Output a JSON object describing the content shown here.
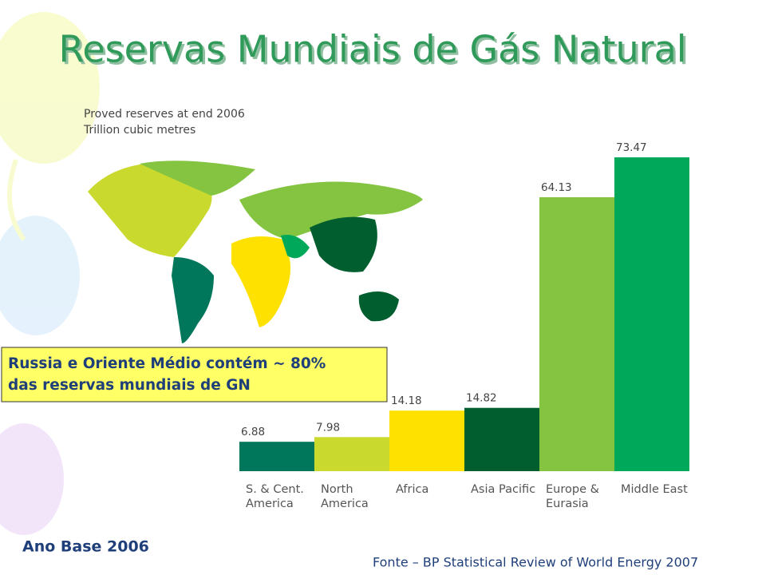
{
  "chart_data": {
    "type": "bar",
    "title": "Reservas Mundiais de Gás Natural",
    "subtitle": [
      "Proved reserves at end 2006",
      "Trillion cubic metres"
    ],
    "categories": [
      "S. & Cent. America",
      "North America",
      "Africa",
      "Asia Pacific",
      "Europe & Eurasia",
      "Middle East"
    ],
    "values": [
      6.88,
      7.98,
      14.18,
      14.82,
      64.13,
      73.47
    ],
    "colors": [
      "#00765a",
      "#c9d92e",
      "#ffe100",
      "#005e2f",
      "#84c441",
      "#00a95a"
    ],
    "annotation": [
      "Russia e Oriente Médio contém ~ 80%",
      "das reservas mundiais de GN"
    ],
    "footnote_left": "Ano Base 2006",
    "source": "Fonte – BP Statistical Review of World Energy 2007"
  }
}
